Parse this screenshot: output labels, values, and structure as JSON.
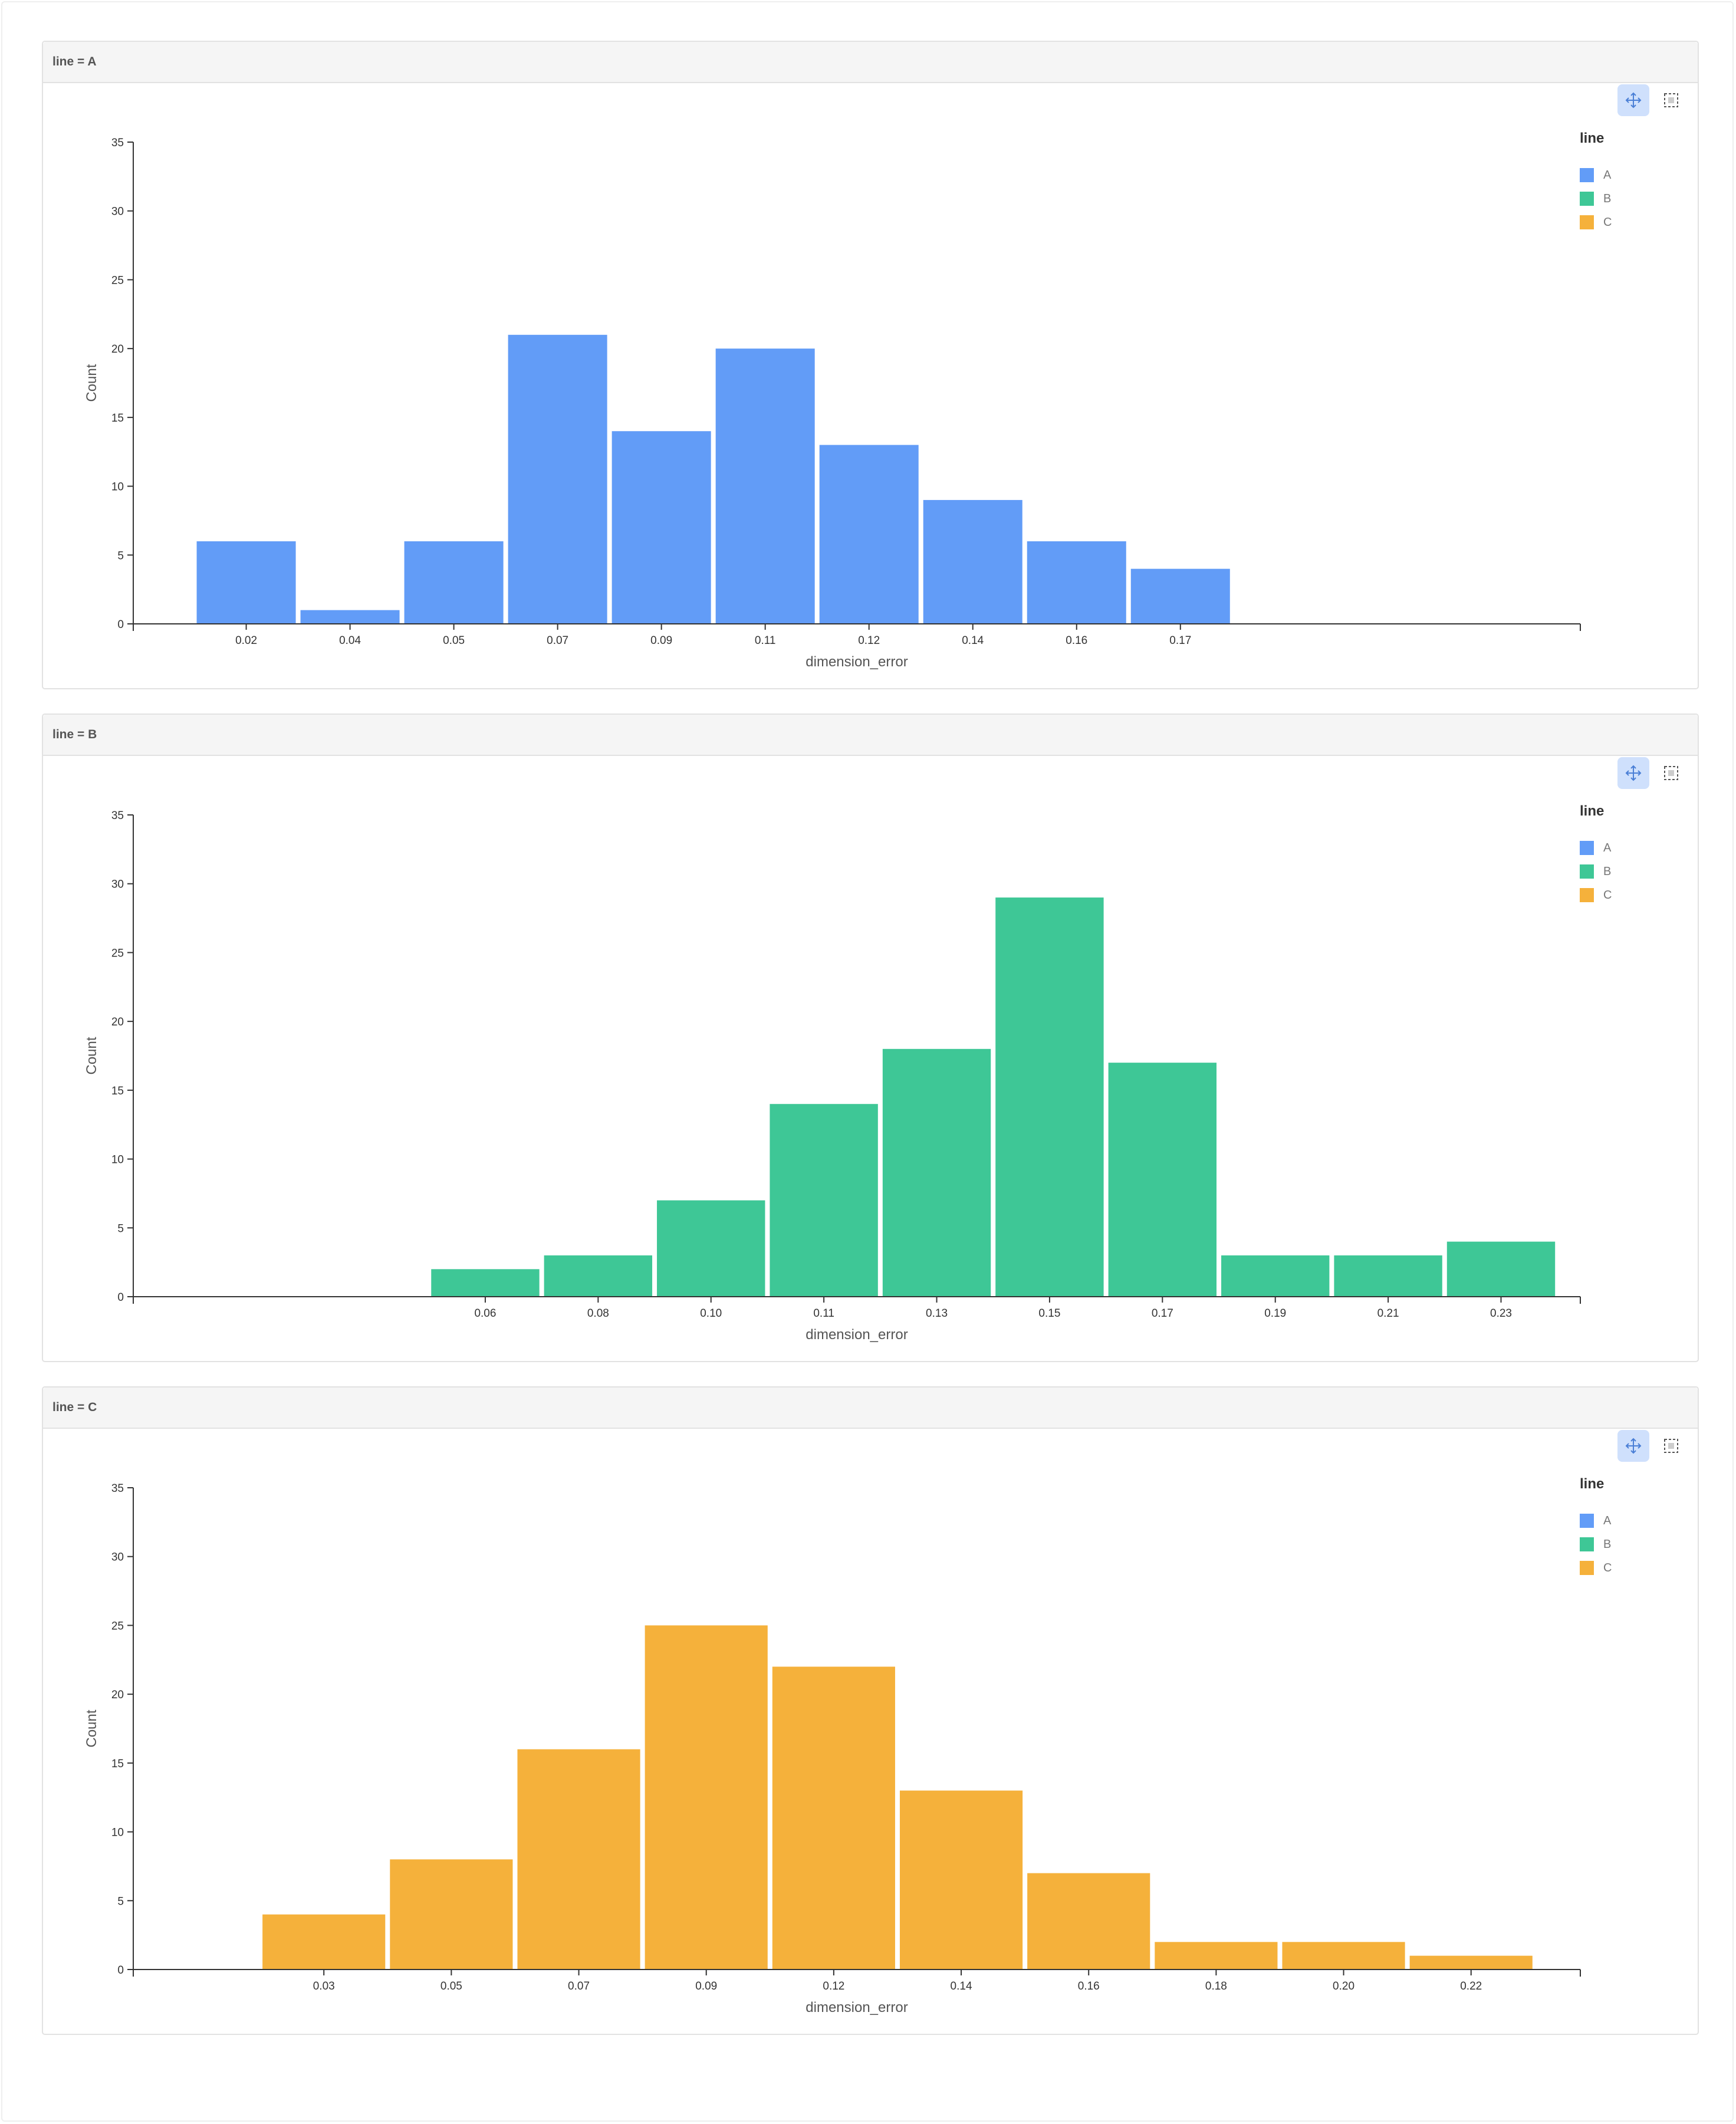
{
  "legend": {
    "title": "line",
    "items": [
      {
        "label": "A",
        "color": "#629cf7"
      },
      {
        "label": "B",
        "color": "#3ec796"
      },
      {
        "label": "C",
        "color": "#f5b13b"
      }
    ]
  },
  "tools": {
    "pan": "pan-icon",
    "select": "box-select-icon"
  },
  "chart_data": [
    {
      "type": "bar",
      "facet": "line = A",
      "color": "#629cf7",
      "xlabel": "dimension_error",
      "ylabel": "Count",
      "ylim": [
        0,
        35
      ],
      "yticks": [
        "0",
        "5",
        "10",
        "15",
        "20",
        "25",
        "30",
        "35"
      ],
      "categories": [
        "0.02",
        "0.04",
        "0.05",
        "0.07",
        "0.09",
        "0.11",
        "0.12",
        "0.14",
        "0.16",
        "0.17"
      ],
      "x": [
        0.021,
        0.038,
        0.055,
        0.072,
        0.089,
        0.106,
        0.123,
        0.14,
        0.157,
        0.174
      ],
      "xlim": [
        0.0025,
        0.2395
      ],
      "bin_width": 0.017,
      "values": [
        6,
        1,
        6,
        21,
        14,
        20,
        13,
        9,
        6,
        4
      ]
    },
    {
      "type": "bar",
      "facet": "line = B",
      "color": "#3ec796",
      "xlabel": "dimension_error",
      "ylabel": "Count",
      "ylim": [
        0,
        35
      ],
      "yticks": [
        "0",
        "5",
        "10",
        "15",
        "20",
        "25",
        "30",
        "35"
      ],
      "categories": [
        "0.06",
        "0.08",
        "0.10",
        "0.11",
        "0.13",
        "0.15",
        "0.17",
        "0.19",
        "0.21",
        "0.23"
      ],
      "x": [
        0.0635,
        0.082,
        0.1005,
        0.119,
        0.1375,
        0.156,
        0.1745,
        0.193,
        0.2115,
        0.23
      ],
      "xlim": [
        0.0058,
        0.243
      ],
      "bin_width": 0.0185,
      "values": [
        2,
        3,
        7,
        14,
        18,
        29,
        17,
        3,
        3,
        4
      ]
    },
    {
      "type": "bar",
      "facet": "line = C",
      "color": "#f5b13b",
      "xlabel": "dimension_error",
      "ylabel": "Count",
      "ylim": [
        0,
        35
      ],
      "yticks": [
        "0",
        "5",
        "10",
        "15",
        "20",
        "25",
        "30",
        "35"
      ],
      "categories": [
        "0.03",
        "0.05",
        "0.07",
        "0.09",
        "0.12",
        "0.14",
        "0.16",
        "0.18",
        "0.20",
        "0.22"
      ],
      "x": [
        0.03,
        0.051,
        0.072,
        0.093,
        0.114,
        0.135,
        0.156,
        0.177,
        0.198,
        0.219
      ],
      "xlim": [
        -0.0014,
        0.237
      ],
      "bin_width": 0.021,
      "values": [
        4,
        8,
        16,
        25,
        22,
        13,
        7,
        2,
        2,
        1
      ]
    }
  ]
}
